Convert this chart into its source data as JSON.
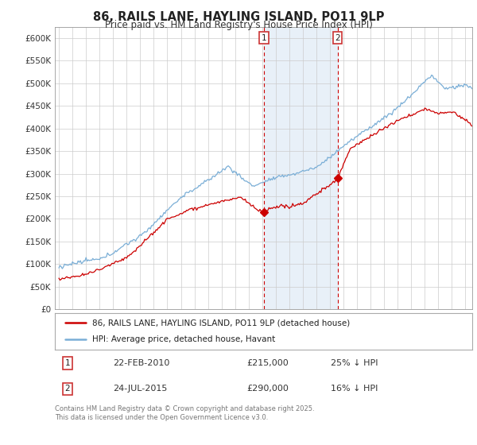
{
  "title": "86, RAILS LANE, HAYLING ISLAND, PO11 9LP",
  "subtitle": "Price paid vs. HM Land Registry's House Price Index (HPI)",
  "ylim": [
    0,
    620000
  ],
  "xlim_start": 1994.7,
  "xlim_end": 2025.5,
  "sale1_date": 2010.13,
  "sale1_price": 215000,
  "sale1_label": "1",
  "sale2_date": 2015.56,
  "sale2_price": 290000,
  "sale2_label": "2",
  "legend_line1": "86, RAILS LANE, HAYLING ISLAND, PO11 9LP (detached house)",
  "legend_line2": "HPI: Average price, detached house, Havant",
  "footer": "Contains HM Land Registry data © Crown copyright and database right 2025.\nThis data is licensed under the Open Government Licence v3.0.",
  "red_color": "#cc0000",
  "blue_color": "#7aaed6",
  "shade_color": "#e8f0f8",
  "background_color": "#ffffff",
  "grid_color": "#cccccc"
}
